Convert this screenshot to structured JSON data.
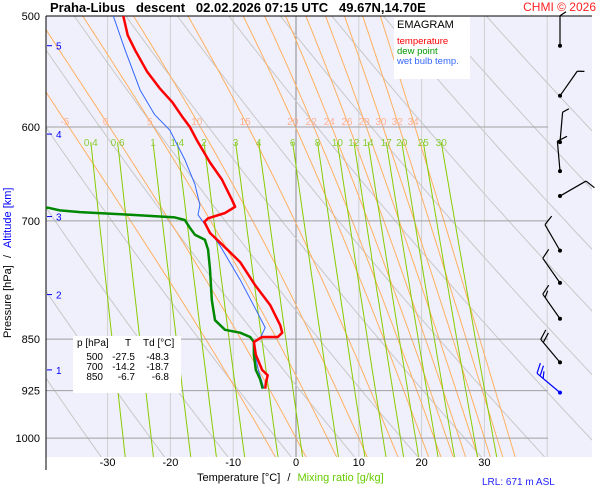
{
  "header": {
    "title": "Praha-Libus   descent   02.02.2026 07:15 UTC   49.67N,14.70E",
    "copyright": "CHMI © 2026"
  },
  "footer": {
    "lrl": "LRL: 671 m ASL"
  },
  "chart_data": {
    "type": "line",
    "title": "EMAGRAM",
    "xlabel": "Temperature [°C]",
    "xlabel_sep": "/",
    "xlabel2": "Mixing ratio [g/kg]",
    "ylabel": "Pressure [hPa]",
    "ylabel_sep": "/",
    "ylabel2": "Altitude [km]",
    "xlim": [
      -40,
      47
    ],
    "ylim": [
      1030,
      500
    ],
    "yscale": "log",
    "x_ticks": [
      -30,
      -20,
      -10,
      0,
      10,
      20,
      30
    ],
    "y_ticks": [
      500,
      600,
      700,
      850,
      925,
      1000
    ],
    "altitude_ticks": [
      {
        "km": "5",
        "p": 525
      },
      {
        "km": "4",
        "p": 607
      },
      {
        "km": "3",
        "p": 695
      },
      {
        "km": "2",
        "p": 790
      },
      {
        "km": "1",
        "p": 894
      }
    ],
    "legend": [
      {
        "label": "temperature",
        "color": "#ff0000"
      },
      {
        "label": "dew point",
        "color": "#008800"
      },
      {
        "label": "wet bulb temp.",
        "color": "#3366ff"
      }
    ],
    "series": [
      {
        "name": "temperature",
        "color": "#ff0000",
        "points": [
          [
            500,
            -27.5
          ],
          [
            516,
            -26.8
          ],
          [
            529,
            -25.6
          ],
          [
            548,
            -23.7
          ],
          [
            563,
            -21.7
          ],
          [
            576,
            -19.7
          ],
          [
            591,
            -18.0
          ],
          [
            600,
            -16.9
          ],
          [
            613,
            -15.8
          ],
          [
            636,
            -13.7
          ],
          [
            654,
            -11.8
          ],
          [
            676,
            -10.2
          ],
          [
            684,
            -9.7
          ],
          [
            691,
            -11.3
          ],
          [
            697,
            -14.0
          ],
          [
            701,
            -14.6
          ],
          [
            714,
            -13.7
          ],
          [
            731,
            -11.3
          ],
          [
            749,
            -8.9
          ],
          [
            778,
            -6.5
          ],
          [
            804,
            -4.1
          ],
          [
            831,
            -2.5
          ],
          [
            841,
            -2.2
          ],
          [
            847,
            -2.9
          ],
          [
            847,
            -5.4
          ],
          [
            854,
            -6.7
          ],
          [
            872,
            -6.4
          ],
          [
            894,
            -5.4
          ],
          [
            902,
            -4.5
          ],
          [
            913,
            -4.8
          ],
          [
            922,
            -4.9
          ]
        ]
      },
      {
        "name": "dew point",
        "color": "#008800",
        "points": [
          [
            683,
            -45
          ],
          [
            685,
            -39.5
          ],
          [
            688,
            -37.6
          ],
          [
            690,
            -34.4
          ],
          [
            693,
            -26.4
          ],
          [
            696,
            -19.3
          ],
          [
            699,
            -17.7
          ],
          [
            708,
            -16.9
          ],
          [
            716,
            -16.1
          ],
          [
            722,
            -14.5
          ],
          [
            734,
            -14.0
          ],
          [
            758,
            -13.7
          ],
          [
            797,
            -13.4
          ],
          [
            824,
            -12.9
          ],
          [
            837,
            -11.3
          ],
          [
            841,
            -8.9
          ],
          [
            847,
            -7.3
          ],
          [
            854,
            -6.7
          ],
          [
            872,
            -6.7
          ],
          [
            894,
            -6.4
          ],
          [
            908,
            -5.7
          ],
          [
            922,
            -5.3
          ]
        ]
      },
      {
        "name": "wet bulb temp.",
        "color": "#3366ff",
        "points": [
          [
            500,
            -29.1
          ],
          [
            529,
            -27.2
          ],
          [
            565,
            -24.8
          ],
          [
            588,
            -22.5
          ],
          [
            603,
            -20.1
          ],
          [
            633,
            -17.7
          ],
          [
            659,
            -16.1
          ],
          [
            682,
            -15.3
          ],
          [
            693,
            -15.6
          ],
          [
            704,
            -14.5
          ],
          [
            729,
            -12.1
          ],
          [
            771,
            -8.9
          ],
          [
            808,
            -6.5
          ],
          [
            834,
            -4.9
          ],
          [
            847,
            -5.6
          ],
          [
            854,
            -6.7
          ],
          [
            872,
            -6.5
          ],
          [
            894,
            -6.0
          ],
          [
            922,
            -5.1
          ]
        ]
      }
    ],
    "mixing_ratio_labels": [
      "0.4",
      "0.6",
      "1",
      "1.4",
      "2",
      "3",
      "4",
      "6",
      "8",
      "10",
      "12",
      "14",
      "17",
      "20",
      "25",
      "30"
    ],
    "moist_adiabat_labels": [
      "-5",
      "0",
      "5",
      "10",
      "15",
      "20",
      "22",
      "24",
      "26",
      "28",
      "30",
      "32",
      "34"
    ],
    "dry_adiabats_K": [
      230,
      240,
      250,
      260,
      270,
      280,
      290,
      300,
      310,
      320,
      330,
      340,
      350,
      360,
      370
    ],
    "table": {
      "headers": [
        "p [hPa]",
        "T",
        "Td [°C]"
      ],
      "rows": [
        [
          "500",
          "-27.5",
          "-48.3"
        ],
        [
          "700",
          "-14.2",
          "-18.7"
        ],
        [
          "850",
          "-6.7",
          "-6.8"
        ]
      ]
    },
    "wind_barbs": [
      {
        "p": 525,
        "dir": 180,
        "kt": 5
      },
      {
        "p": 570,
        "dir": 215,
        "kt": 5
      },
      {
        "p": 615,
        "dir": 185,
        "kt": 5
      },
      {
        "p": 645,
        "dir": 175,
        "kt": 10
      },
      {
        "p": 672,
        "dir": 240,
        "kt": 10
      },
      {
        "p": 735,
        "dir": 150,
        "kt": 10
      },
      {
        "p": 775,
        "dir": 145,
        "kt": 10
      },
      {
        "p": 822,
        "dir": 145,
        "kt": 15
      },
      {
        "p": 883,
        "dir": 140,
        "kt": 20
      },
      {
        "p": 928,
        "dir": 130,
        "kt": 25,
        "color": "#0000ff"
      }
    ],
    "colors": {
      "background": "#f0f0fc",
      "isobar": "#a0a0a0",
      "dry_adiabat": "#c8c8c8",
      "moist_adiabat": "#ffb060",
      "mixing_ratio": "#88cc00",
      "mixing_label": "#88cc33",
      "moist_label": "#ffb090"
    }
  }
}
